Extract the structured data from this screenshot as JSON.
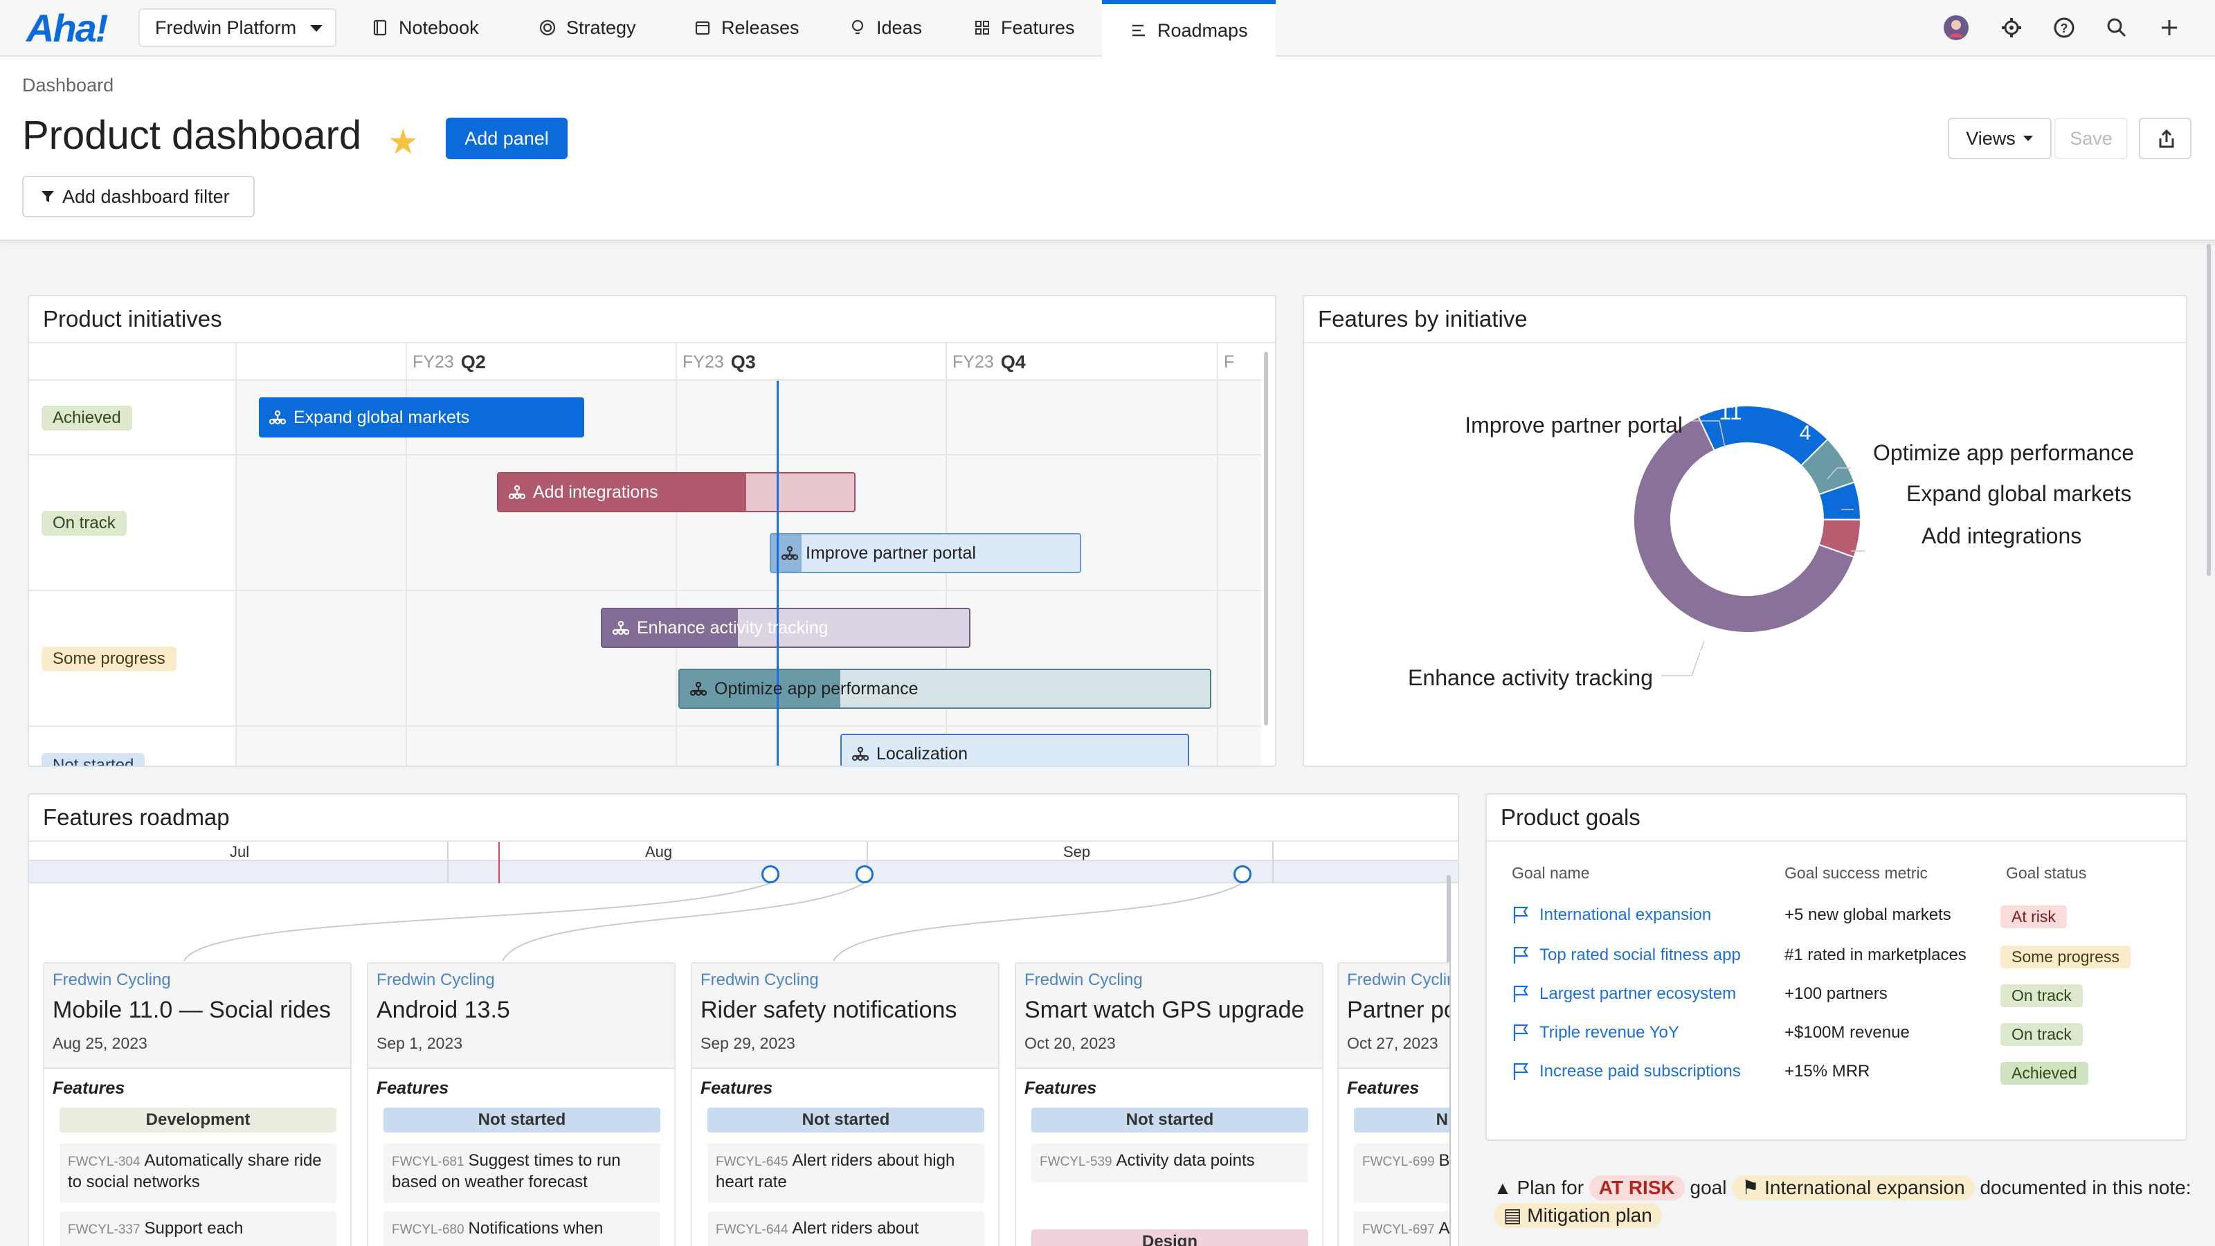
{
  "app": {
    "logo": "Aha!",
    "workspace": "Fredwin Platform",
    "nav": [
      {
        "label": "Notebook",
        "icon": "notebook-icon"
      },
      {
        "label": "Strategy",
        "icon": "target-icon"
      },
      {
        "label": "Releases",
        "icon": "calendar-icon"
      },
      {
        "label": "Ideas",
        "icon": "lightbulb-icon"
      },
      {
        "label": "Features",
        "icon": "grid-icon"
      },
      {
        "label": "Roadmaps",
        "icon": "roadmap-icon"
      }
    ],
    "accent": "#0b6bd9"
  },
  "header": {
    "breadcrumb": "Dashboard",
    "title": "Product dashboard",
    "add_panel": "Add panel",
    "add_filter": "Add dashboard filter",
    "views": "Views",
    "save": "Save"
  },
  "initiatives": {
    "title": "Product initiatives",
    "quarters": [
      {
        "fy": "FY23",
        "q": "Q2"
      },
      {
        "fy": "FY23",
        "q": "Q3"
      },
      {
        "fy": "FY23",
        "q": "Q4"
      },
      {
        "fy": "F",
        "q": ""
      }
    ],
    "lanes": [
      "Achieved",
      "On track",
      "Some progress",
      "Not started"
    ],
    "bars": [
      {
        "label": "Expand global markets"
      },
      {
        "label": "Add integrations"
      },
      {
        "label": "Improve partner portal"
      },
      {
        "label": "Enhance activity tracking"
      },
      {
        "label": "Optimize app performance"
      },
      {
        "label": "Localization"
      }
    ]
  },
  "features_by_initiative": {
    "title": "Features by initiative",
    "labels": {
      "partner": "Improve partner portal",
      "optimize": "Optimize app performance",
      "expand": "Expand global markets",
      "integrations": "Add integrations",
      "enhance": "Enhance activity tracking"
    },
    "values": {
      "partner": "11",
      "optimize": "4",
      "enhance": "35"
    }
  },
  "chart_data": {
    "type": "pie",
    "title": "Features by initiative",
    "categories": [
      "Improve partner portal",
      "Optimize app performance",
      "Expand global markets",
      "Add integrations",
      "Enhance activity tracking"
    ],
    "values": [
      11,
      4,
      3,
      3,
      35
    ],
    "colors": [
      "#0b6bd9",
      "#6a9aa6",
      "#0b6bd9",
      "#b85c70",
      "#8a7199"
    ]
  },
  "roadmap": {
    "title": "Features roadmap",
    "months": [
      "Jul",
      "Aug",
      "Sep"
    ],
    "features_heading": "Features",
    "cards": [
      {
        "project": "Fredwin Cycling",
        "release": "Mobile 11.0 — Social rides",
        "date": "Aug 25, 2023",
        "status": "Development",
        "items": [
          {
            "ref": "FWCYL-304",
            "text": "Automatically share ride to social networks"
          },
          {
            "ref": "FWCYL-337",
            "text": "Support each"
          }
        ]
      },
      {
        "project": "Fredwin Cycling",
        "release": "Android 13.5",
        "date": "Sep 1, 2023",
        "status": "Not started",
        "items": [
          {
            "ref": "FWCYL-681",
            "text": "Suggest times to run based on weather forecast"
          },
          {
            "ref": "FWCYL-680",
            "text": "Notifications when"
          }
        ]
      },
      {
        "project": "Fredwin Cycling",
        "release": "Rider safety notifications",
        "date": "Sep 29, 2023",
        "status": "Not started",
        "items": [
          {
            "ref": "FWCYL-645",
            "text": "Alert riders about high heart rate"
          },
          {
            "ref": "FWCYL-644",
            "text": "Alert riders about"
          }
        ]
      },
      {
        "project": "Fredwin Cycling",
        "release": "Smart watch GPS upgrade",
        "date": "Oct 20, 2023",
        "status": "Not started",
        "status2": "Design",
        "items": [
          {
            "ref": "FWCYL-539",
            "text": "Activity data points"
          }
        ]
      },
      {
        "project": "Fredwin Cycling",
        "release": "Partner po",
        "date": "Oct 27, 2023",
        "status": "N",
        "items": [
          {
            "ref": "FWCYL-699",
            "text": "Bra customization"
          },
          {
            "ref": "FWCYL-697",
            "text": "Ad"
          }
        ]
      }
    ]
  },
  "goals": {
    "title": "Product goals",
    "headers": {
      "name": "Goal name",
      "metric": "Goal success metric",
      "status": "Goal status"
    },
    "rows": [
      {
        "name": "International expansion",
        "metric": "+5 new global markets",
        "status": "At risk"
      },
      {
        "name": "Top rated social fitness app",
        "metric": "#1 rated in marketplaces",
        "status": "Some progress"
      },
      {
        "name": "Largest partner ecosystem",
        "metric": "+100 partners",
        "status": "On track"
      },
      {
        "name": "Triple revenue YoY",
        "metric": "+$100M revenue",
        "status": "On track"
      },
      {
        "name": "Increase paid subscriptions",
        "metric": "+15% MRR",
        "status": "Achieved"
      }
    ]
  },
  "note": {
    "pre": "Plan for",
    "risk": "AT RISK",
    "mid": "goal",
    "goal": "International expansion",
    "post": "documented in this note:",
    "doc": "Mitigation plan"
  }
}
